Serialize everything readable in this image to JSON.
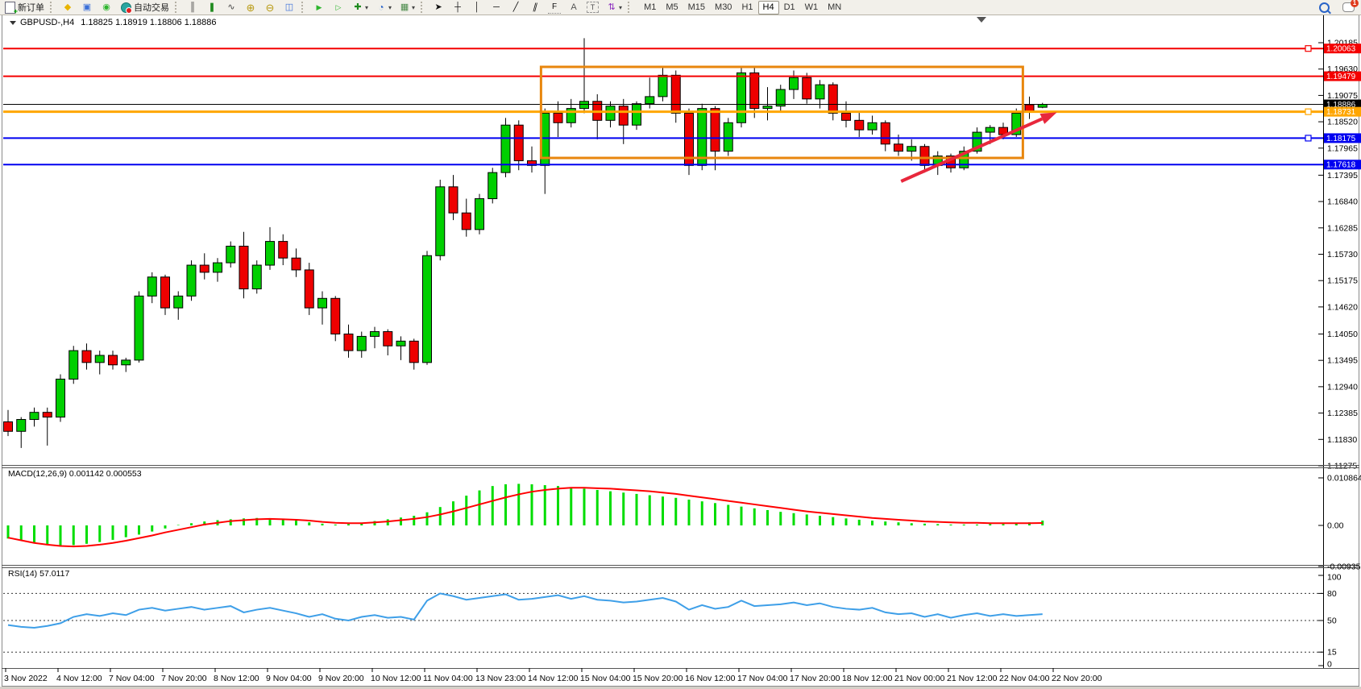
{
  "toolbar": {
    "new_order_label": "新订单",
    "autotrading_label": "自动交易",
    "timeframes": [
      {
        "label": "M1",
        "active": false
      },
      {
        "label": "M5",
        "active": false
      },
      {
        "label": "M15",
        "active": false
      },
      {
        "label": "M30",
        "active": false
      },
      {
        "label": "H1",
        "active": false
      },
      {
        "label": "H4",
        "active": true
      },
      {
        "label": "D1",
        "active": false
      },
      {
        "label": "W1",
        "active": false
      },
      {
        "label": "MN",
        "active": false
      }
    ],
    "chat_badge": "1",
    "icons": {
      "new_order_plus": "+",
      "gold_ingot": "◆",
      "data_window": "▣",
      "signal": "◉",
      "bar_chart": "║",
      "candlestick_chart": "❚",
      "line_chart": "∿",
      "zoom_in": "⊕",
      "zoom_out": "⊖",
      "tile_windows": "◫",
      "auto_scroll": "▶",
      "chart_shift": "▷",
      "indicators": "✚",
      "periods": "◔",
      "templates": "▦",
      "cursor": "➤",
      "crosshair": "┼",
      "vertical_line": "│",
      "horizontal_line": "─",
      "trendline": "╱",
      "channel": "∥",
      "fibonacci": "F",
      "text": "A",
      "text_label": "T",
      "arrows": "⇅",
      "dropdown": "▾"
    }
  },
  "chart": {
    "symbol_period": "GBPUSD-,H4",
    "ohlc": "1.18825 1.18919 1.18806 1.18886"
  },
  "indicators": {
    "macd": {
      "label": "MACD(12,26,9)",
      "values": "0.001142 0.000553"
    },
    "rsi": {
      "label": "RSI(14)",
      "value": "57.0117"
    }
  },
  "chart_data": {
    "type": "candlestick",
    "symbol": "GBPUSD",
    "period": "H4",
    "current_bar_ohlc": {
      "open": 1.18825,
      "high": 1.18919,
      "low": 1.18806,
      "close": 1.18886
    },
    "price_axis_ticks": [
      1.20185,
      1.1963,
      1.19075,
      1.1852,
      1.17965,
      1.17395,
      1.1684,
      1.16285,
      1.1573,
      1.15175,
      1.1462,
      1.1405,
      1.13495,
      1.1294,
      1.12385,
      1.1183,
      1.11275
    ],
    "levels": [
      {
        "price": 1.20063,
        "color": "#f40000",
        "width": 2,
        "handle": true,
        "name": "resistance-line-upper"
      },
      {
        "price": 1.19479,
        "color": "#f40000",
        "width": 2,
        "handle": false,
        "name": "resistance-line-lower"
      },
      {
        "price": 1.18886,
        "color": "#000000",
        "width": 1,
        "handle": false,
        "name": "current-price-line",
        "current": true
      },
      {
        "price": 1.18731,
        "color": "#ffa600",
        "width": 3,
        "handle": true,
        "name": "pivot-line-orange"
      },
      {
        "price": 1.18175,
        "color": "#0000f0",
        "width": 2,
        "handle": true,
        "name": "support-line-upper"
      },
      {
        "price": 1.17618,
        "color": "#0000f0",
        "width": 2,
        "handle": false,
        "name": "support-line-lower"
      }
    ],
    "candles": {
      "open": [
        1.122,
        1.12,
        1.1225,
        1.124,
        1.123,
        1.131,
        1.137,
        1.1345,
        1.136,
        1.134,
        1.135,
        1.1485,
        1.1525,
        1.146,
        1.1485,
        1.155,
        1.1535,
        1.1555,
        1.159,
        1.15,
        1.155,
        1.16,
        1.1565,
        1.154,
        1.146,
        1.148,
        1.1405,
        1.137,
        1.14,
        1.141,
        1.138,
        1.139,
        1.1345,
        1.157,
        1.1715,
        1.166,
        1.1625,
        1.169,
        1.1745,
        1.1845,
        1.177,
        1.176,
        1.187,
        1.185,
        1.188,
        1.1895,
        1.1855,
        1.1885,
        1.1845,
        1.189,
        1.1905,
        1.195,
        1.187,
        1.176,
        1.188,
        1.179,
        1.185,
        1.1955,
        1.188,
        1.1885,
        1.192,
        1.1945,
        1.19,
        1.193,
        1.187,
        1.1855,
        1.1835,
        1.185,
        1.1805,
        1.179,
        1.18,
        1.176,
        1.178,
        1.1755,
        1.179,
        1.183,
        1.184,
        1.1825,
        1.1888,
        1.18825
      ],
      "high": [
        1.1245,
        1.123,
        1.125,
        1.125,
        1.132,
        1.138,
        1.1385,
        1.137,
        1.137,
        1.1355,
        1.1495,
        1.1535,
        1.153,
        1.1495,
        1.156,
        1.1575,
        1.1565,
        1.16,
        1.162,
        1.156,
        1.163,
        1.1615,
        1.1585,
        1.1555,
        1.1495,
        1.1485,
        1.1425,
        1.141,
        1.142,
        1.1415,
        1.14,
        1.1395,
        1.158,
        1.173,
        1.174,
        1.169,
        1.17,
        1.1755,
        1.186,
        1.1855,
        1.18,
        1.188,
        1.1895,
        1.19,
        1.2028,
        1.191,
        1.1895,
        1.19,
        1.1895,
        1.1945,
        1.1965,
        1.196,
        1.188,
        1.189,
        1.1885,
        1.186,
        1.1965,
        1.197,
        1.1925,
        1.193,
        1.196,
        1.1955,
        1.194,
        1.1935,
        1.1895,
        1.1875,
        1.1865,
        1.1855,
        1.1825,
        1.1815,
        1.1805,
        1.179,
        1.1785,
        1.18,
        1.184,
        1.1845,
        1.185,
        1.188,
        1.1905,
        1.18919
      ],
      "low": [
        1.119,
        1.1165,
        1.121,
        1.117,
        1.122,
        1.13,
        1.133,
        1.132,
        1.133,
        1.1325,
        1.1345,
        1.147,
        1.1445,
        1.1435,
        1.1475,
        1.152,
        1.1515,
        1.1545,
        1.148,
        1.149,
        1.154,
        1.155,
        1.1525,
        1.1445,
        1.1425,
        1.139,
        1.1355,
        1.1355,
        1.1375,
        1.136,
        1.135,
        1.133,
        1.134,
        1.156,
        1.1645,
        1.161,
        1.1615,
        1.168,
        1.1735,
        1.175,
        1.1745,
        1.17,
        1.182,
        1.184,
        1.187,
        1.1815,
        1.184,
        1.1805,
        1.1835,
        1.188,
        1.1895,
        1.185,
        1.174,
        1.175,
        1.175,
        1.178,
        1.184,
        1.186,
        1.1855,
        1.1875,
        1.19,
        1.189,
        1.188,
        1.1855,
        1.184,
        1.182,
        1.1825,
        1.179,
        1.178,
        1.177,
        1.1745,
        1.174,
        1.1745,
        1.175,
        1.1785,
        1.1805,
        1.1815,
        1.182,
        1.1858,
        1.18806
      ],
      "close": [
        1.12,
        1.1225,
        1.124,
        1.123,
        1.131,
        1.137,
        1.1345,
        1.136,
        1.134,
        1.135,
        1.1485,
        1.1525,
        1.146,
        1.1485,
        1.155,
        1.1535,
        1.1555,
        1.159,
        1.15,
        1.155,
        1.16,
        1.1565,
        1.154,
        1.146,
        1.148,
        1.1405,
        1.137,
        1.14,
        1.141,
        1.138,
        1.139,
        1.1345,
        1.157,
        1.1715,
        1.166,
        1.1625,
        1.169,
        1.1745,
        1.1845,
        1.177,
        1.176,
        1.187,
        1.185,
        1.188,
        1.1895,
        1.1855,
        1.1885,
        1.1845,
        1.189,
        1.1905,
        1.195,
        1.187,
        1.176,
        1.188,
        1.179,
        1.185,
        1.1955,
        1.188,
        1.1885,
        1.192,
        1.1945,
        1.19,
        1.193,
        1.187,
        1.1855,
        1.1835,
        1.185,
        1.1805,
        1.179,
        1.18,
        1.176,
        1.178,
        1.1755,
        1.179,
        1.183,
        1.184,
        1.1825,
        1.187,
        1.1872,
        1.18886
      ]
    },
    "macd": {
      "label": "MACD(12,26,9)",
      "value_main": 0.001142,
      "value_signal": 0.000553,
      "axis_ticks": [
        0.010864,
        0.0,
        -0.009358
      ],
      "histogram": [
        -0.003,
        -0.0035,
        -0.004,
        -0.0044,
        -0.0046,
        -0.0045,
        -0.0042,
        -0.0038,
        -0.0033,
        -0.0027,
        -0.0021,
        -0.0014,
        -0.0007,
        0.0001,
        0.0005,
        0.0009,
        0.0012,
        0.0014,
        0.0016,
        0.0017,
        0.0016,
        0.0014,
        0.0011,
        0.0007,
        0.0004,
        0.0002,
        0.0003,
        0.0006,
        0.001,
        0.0014,
        0.0018,
        0.0022,
        0.003,
        0.0042,
        0.0055,
        0.0068,
        0.008,
        0.009,
        0.0094,
        0.0095,
        0.0094,
        0.0092,
        0.009,
        0.0087,
        0.0084,
        0.0081,
        0.0078,
        0.0075,
        0.0072,
        0.0069,
        0.0066,
        0.0063,
        0.0059,
        0.0055,
        0.0051,
        0.0047,
        0.0043,
        0.0039,
        0.0035,
        0.0031,
        0.0028,
        0.0025,
        0.0022,
        0.0019,
        0.0016,
        0.0013,
        0.0011,
        0.0009,
        0.0007,
        0.0005,
        0.0004,
        0.0003,
        0.0002,
        0.0002,
        0.0002,
        0.0003,
        0.0003,
        0.0004,
        0.0007,
        0.0011
      ],
      "signal": [
        -0.0028,
        -0.0034,
        -0.004,
        -0.0044,
        -0.0047,
        -0.0048,
        -0.0047,
        -0.0044,
        -0.004,
        -0.0035,
        -0.0029,
        -0.0023,
        -0.0016,
        -0.001,
        -0.0004,
        0.0002,
        0.0006,
        0.001,
        0.0012,
        0.0014,
        0.0015,
        0.0014,
        0.0013,
        0.0011,
        0.0008,
        0.0006,
        0.0005,
        0.0005,
        0.0007,
        0.0009,
        0.0012,
        0.0015,
        0.0019,
        0.0025,
        0.0032,
        0.004,
        0.0048,
        0.0056,
        0.0064,
        0.0071,
        0.0077,
        0.0081,
        0.0084,
        0.0086,
        0.0086,
        0.0085,
        0.0084,
        0.0082,
        0.008,
        0.0078,
        0.0075,
        0.0072,
        0.0068,
        0.0064,
        0.006,
        0.0056,
        0.0052,
        0.0048,
        0.0044,
        0.004,
        0.0036,
        0.0032,
        0.0029,
        0.0026,
        0.0023,
        0.002,
        0.0017,
        0.0015,
        0.0013,
        0.0011,
        0.0009,
        0.0008,
        0.0007,
        0.0006,
        0.0006,
        0.0005,
        0.0005,
        0.0005,
        0.0005,
        0.00055
      ]
    },
    "rsi": {
      "label": "RSI(14)",
      "value": 57.0117,
      "axis_ticks": [
        100,
        80,
        50,
        15,
        0
      ],
      "dashed_levels": [
        80,
        50,
        15
      ],
      "values": [
        45,
        43,
        42,
        44,
        47,
        54,
        57,
        55,
        58,
        56,
        62,
        64,
        61,
        63,
        65,
        62,
        64,
        66,
        59,
        62,
        64,
        61,
        58,
        54,
        57,
        52,
        50,
        54,
        56,
        53,
        54,
        51,
        72,
        80,
        77,
        73,
        75,
        77,
        79,
        73,
        74,
        76,
        78,
        74,
        77,
        73,
        72,
        70,
        71,
        73,
        75,
        71,
        62,
        67,
        63,
        65,
        72,
        66,
        67,
        68,
        70,
        67,
        69,
        65,
        63,
        62,
        64,
        59,
        57,
        58,
        54,
        57,
        53,
        56,
        58,
        55,
        57,
        55,
        56,
        57.0117
      ]
    },
    "time_labels": [
      "3 Nov 2022",
      "4 Nov 12:00",
      "7 Nov 04:00",
      "7 Nov 20:00",
      "8 Nov 12:00",
      "9 Nov 04:00",
      "9 Nov 20:00",
      "10 Nov 12:00",
      "11 Nov 04:00",
      "13 Nov 23:00",
      "14 Nov 12:00",
      "15 Nov 04:00",
      "15 Nov 20:00",
      "16 Nov 12:00",
      "17 Nov 04:00",
      "17 Nov 20:00",
      "18 Nov 12:00",
      "21 Nov 00:00",
      "21 Nov 12:00",
      "22 Nov 04:00",
      "22 Nov 20:00"
    ],
    "annotations": {
      "rectangle": {
        "bar_start": 40.7,
        "bar_end": 77.5,
        "price_top": 1.19676,
        "price_bottom": 1.17758,
        "color": "#e8860d"
      },
      "arrow": {
        "bar_start": 68.2,
        "price_start": 1.17266,
        "bar_end": 80.1,
        "price_end": 1.1872,
        "color": "#e8273c"
      }
    },
    "colors": {
      "bull": "#00cf00",
      "bear": "#ee0000",
      "wick": "#000000",
      "macd_histogram": "#00dd00",
      "macd_signal": "#ff0000",
      "rsi_line": "#3e9fe8",
      "background": "#ffffff"
    },
    "layout": {
      "grid": false,
      "price_axis_right": true,
      "panels": [
        "main",
        "macd",
        "rsi"
      ]
    }
  }
}
